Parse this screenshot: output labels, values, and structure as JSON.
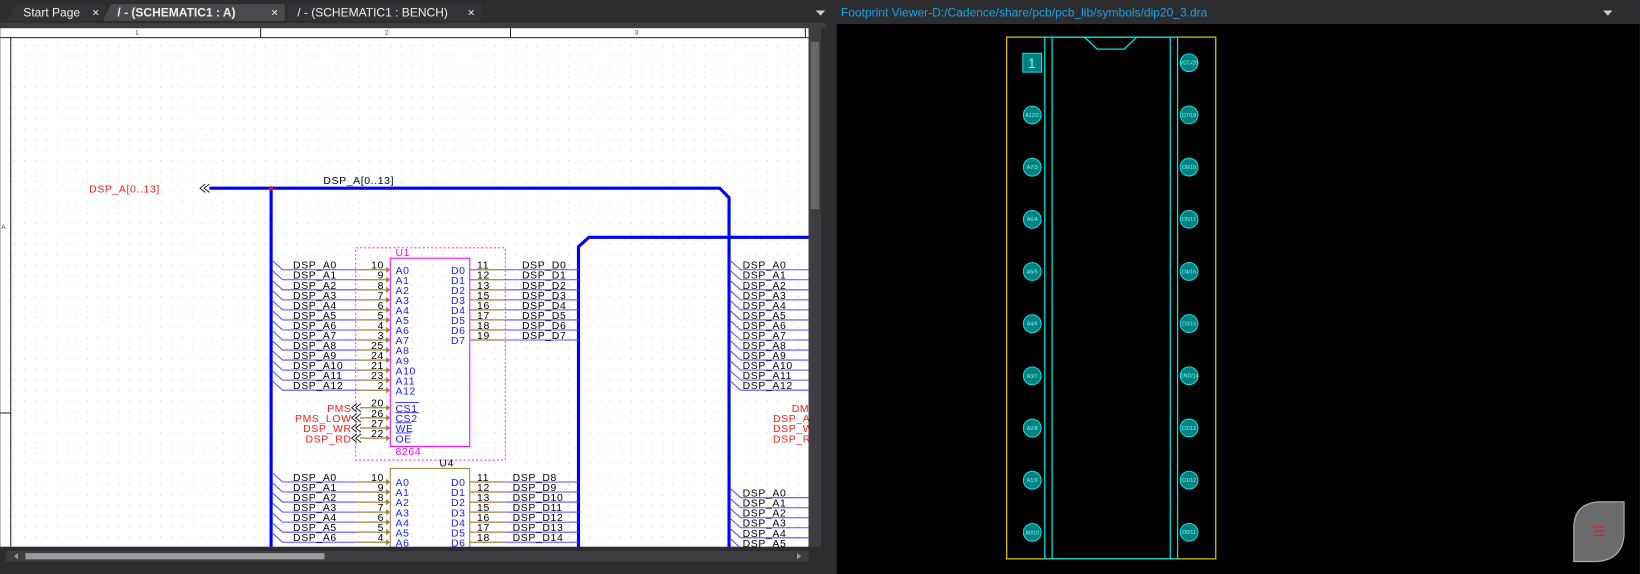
{
  "tabs": [
    {
      "label": "Start Page",
      "active": false
    },
    {
      "label": "/ - (SCHEMATIC1 : A)",
      "active": true
    },
    {
      "label": "/ - (SCHEMATIC1 : BENCH)",
      "active": false
    }
  ],
  "tab_close_glyph": "×",
  "footprint_viewer": {
    "title": "Footprint Viewer-D:/Cadence/share/pcb/pcb_lib/symbols/dip20_3.dra",
    "pin1_label": "1",
    "left_pads": [
      "A12/2",
      "A7/3",
      "A6/4",
      "A5/5",
      "A4/6",
      "A3/7",
      "A2/8",
      "A1/9",
      "A0/10"
    ],
    "right_pads": [
      "VCC/20",
      "D7/19",
      "D6/18",
      "D5/17",
      "D4/16",
      "D3/15",
      "GND/14",
      "D2/13",
      "D1/12",
      "D0/11"
    ],
    "menu_icon": "hamburger-icon"
  },
  "schematic": {
    "ruler": [
      "1",
      "2",
      "3"
    ],
    "row_label": "A",
    "bus_label": "DSP_A[0..13]",
    "offpage_label": "DSP_A[0..13]",
    "u1": {
      "ref": "U1",
      "value": "8264",
      "addr_pins": [
        {
          "name": "A0",
          "num": "10",
          "net": "DSP_A0"
        },
        {
          "name": "A1",
          "num": "9",
          "net": "DSP_A1"
        },
        {
          "name": "A2",
          "num": "8",
          "net": "DSP_A2"
        },
        {
          "name": "A3",
          "num": "7",
          "net": "DSP_A3"
        },
        {
          "name": "A4",
          "num": "6",
          "net": "DSP_A4"
        },
        {
          "name": "A5",
          "num": "5",
          "net": "DSP_A5"
        },
        {
          "name": "A6",
          "num": "4",
          "net": "DSP_A6"
        },
        {
          "name": "A7",
          "num": "3",
          "net": "DSP_A7"
        },
        {
          "name": "A8",
          "num": "25",
          "net": "DSP_A8"
        },
        {
          "name": "A9",
          "num": "24",
          "net": "DSP_A9"
        },
        {
          "name": "A10",
          "num": "21",
          "net": "DSP_A10"
        },
        {
          "name": "A11",
          "num": "23",
          "net": "DSP_A11"
        },
        {
          "name": "A12",
          "num": "2",
          "net": "DSP_A12"
        }
      ],
      "data_pins": [
        {
          "name": "D0",
          "num": "11",
          "net": "DSP_D0"
        },
        {
          "name": "D1",
          "num": "12",
          "net": "DSP_D1"
        },
        {
          "name": "D2",
          "num": "13",
          "net": "DSP_D2"
        },
        {
          "name": "D3",
          "num": "15",
          "net": "DSP_D3"
        },
        {
          "name": "D4",
          "num": "16",
          "net": "DSP_D4"
        },
        {
          "name": "D5",
          "num": "17",
          "net": "DSP_D5"
        },
        {
          "name": "D6",
          "num": "18",
          "net": "DSP_D6"
        },
        {
          "name": "D7",
          "num": "19",
          "net": "DSP_D7"
        }
      ],
      "ctrl_pins": [
        {
          "name": "CS1",
          "num": "20",
          "net": "PMS"
        },
        {
          "name": "CS2",
          "num": "26",
          "net": "PMS_LOW"
        },
        {
          "name": "WE",
          "num": "27",
          "net": "DSP_WR"
        },
        {
          "name": "OE",
          "num": "22",
          "net": "DSP_RD"
        }
      ]
    },
    "u4": {
      "ref": "U4",
      "addr_pins": [
        {
          "name": "A0",
          "num": "10",
          "net": "DSP_A0"
        },
        {
          "name": "A1",
          "num": "9",
          "net": "DSP_A1"
        },
        {
          "name": "A2",
          "num": "8",
          "net": "DSP_A2"
        },
        {
          "name": "A3",
          "num": "7",
          "net": "DSP_A3"
        },
        {
          "name": "A4",
          "num": "6",
          "net": "DSP_A4"
        },
        {
          "name": "A5",
          "num": "5",
          "net": "DSP_A5"
        },
        {
          "name": "A6",
          "num": "4",
          "net": "DSP_A6"
        }
      ],
      "data_pins": [
        {
          "name": "D0",
          "num": "11",
          "net": "DSP_D8"
        },
        {
          "name": "D1",
          "num": "12",
          "net": "DSP_D9"
        },
        {
          "name": "D2",
          "num": "13",
          "net": "DSP_D10"
        },
        {
          "name": "D3",
          "num": "15",
          "net": "DSP_D11"
        },
        {
          "name": "D4",
          "num": "16",
          "net": "DSP_D12"
        },
        {
          "name": "D5",
          "num": "17",
          "net": "DSP_D13"
        },
        {
          "name": "D6",
          "num": "18",
          "net": "DSP_D14"
        }
      ]
    },
    "right_nets": [
      "DSP_A0",
      "DSP_A1",
      "DSP_A2",
      "DSP_A3",
      "DSP_A4",
      "DSP_A5",
      "DSP_A6",
      "DSP_A7",
      "DSP_A8",
      "DSP_A9",
      "DSP_A10",
      "DSP_A11",
      "DSP_A12"
    ],
    "right_ctrl": [
      "DM",
      "DSP_A",
      "DSP_W",
      "DSP_R"
    ],
    "right_nets2": [
      "DSP_A0",
      "DSP_A1",
      "DSP_A2",
      "DSP_A3",
      "DSP_A4",
      "DSP_A5"
    ]
  },
  "colors": {
    "bus": "#0000ff",
    "net": "#5a4cff",
    "pin": "#a0804a",
    "pin_name": "#1a1aff",
    "offpage": "#ff1a1a",
    "part": "#ff00ff",
    "footprint_outline": "#d4c400",
    "footprint_pad": "#00e5e5",
    "viewer_title": "#1ba1e2"
  }
}
